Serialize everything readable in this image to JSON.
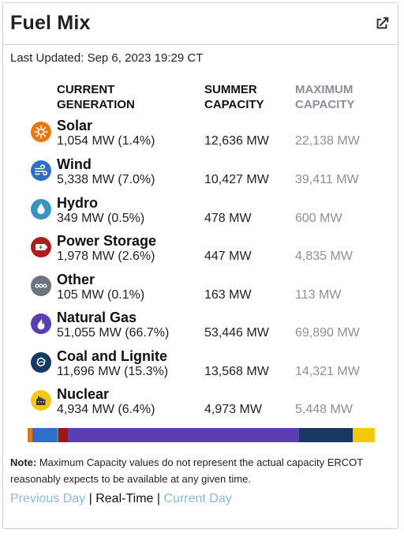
{
  "header": {
    "title": "Fuel Mix",
    "popout_icon": "external-link-icon"
  },
  "last_updated": "Last Updated: Sep 6, 2023 19:29 CT",
  "columns": {
    "generation": [
      "CURRENT",
      "GENERATION"
    ],
    "summer": [
      "SUMMER",
      "CAPACITY"
    ],
    "maximum": [
      "MAXIMUM",
      "CAPACITY"
    ]
  },
  "fuels": [
    {
      "name": "Solar",
      "generation": "1,054 MW (1.4%)",
      "summer": "12,636 MW",
      "maximum": "22,138 MW",
      "icon": "sun-icon",
      "color": "#e8780c"
    },
    {
      "name": "Wind",
      "generation": "5,338 MW (7.0%)",
      "summer": "10,427 MW",
      "maximum": "39,411 MW",
      "icon": "wind-icon",
      "color": "#2f6fc9"
    },
    {
      "name": "Hydro",
      "generation": "349 MW (0.5%)",
      "summer": "478 MW",
      "maximum": "600 MW",
      "icon": "water-drop-icon",
      "color": "#3a94c2"
    },
    {
      "name": "Power Storage",
      "generation": "1,978 MW (2.6%)",
      "summer": "447 MW",
      "maximum": "4,835 MW",
      "icon": "battery-icon",
      "color": "#b01c1c"
    },
    {
      "name": "Other",
      "generation": "105 MW (0.1%)",
      "summer": "163 MW",
      "maximum": "113 MW",
      "icon": "dots-icon",
      "color": "#6d7480"
    },
    {
      "name": "Natural Gas",
      "generation": "51,055 MW (66.7%)",
      "summer": "53,446 MW",
      "maximum": "69,890 MW",
      "icon": "flame-icon",
      "color": "#5b3fb0"
    },
    {
      "name": "Coal and Lignite",
      "generation": "11,696 MW (15.3%)",
      "summer": "13,568 MW",
      "maximum": "14,321 MW",
      "icon": "coal-icon",
      "color": "#173a63"
    },
    {
      "name": "Nuclear",
      "generation": "4,934 MW (6.4%)",
      "summer": "4,973 MW",
      "maximum": "5,448 MW",
      "icon": "nuclear-plant-icon",
      "color": "#f2c811"
    }
  ],
  "mix_bar": [
    {
      "fuel": "Solar",
      "share": 1.4,
      "color": "#e8780c"
    },
    {
      "fuel": "Wind",
      "share": 7.0,
      "color": "#2f6fc9"
    },
    {
      "fuel": "Hydro",
      "share": 0.5,
      "color": "#3a94c2"
    },
    {
      "fuel": "Power Storage",
      "share": 2.6,
      "color": "#a01515"
    },
    {
      "fuel": "Other",
      "share": 0.1,
      "color": "#6d7480"
    },
    {
      "fuel": "Natural Gas",
      "share": 66.7,
      "color": "#5b3fb0"
    },
    {
      "fuel": "Coal and Lignite",
      "share": 15.3,
      "color": "#173a63"
    },
    {
      "fuel": "Nuclear",
      "share": 6.4,
      "color": "#f2c811"
    }
  ],
  "note": {
    "label": "Note:",
    "text": " Maximum Capacity values do not represent the actual capacity ERCOT reasonably expects to be available at any given time."
  },
  "links": {
    "previous": "Previous Day",
    "separator": "|",
    "realtime": "Real-Time",
    "current": "Current Day"
  }
}
